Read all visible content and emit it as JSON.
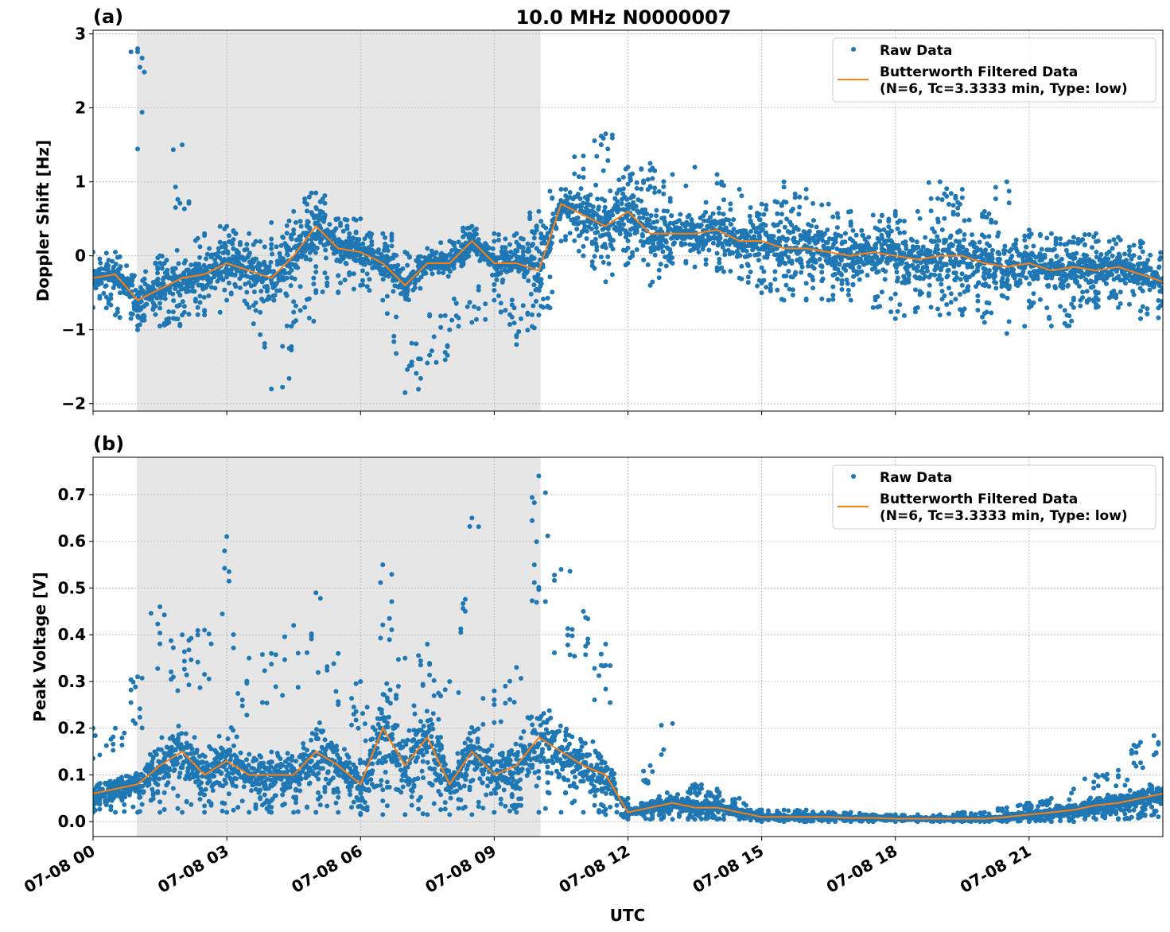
{
  "title": "10.0 MHz N0000007",
  "xlabel": "UTC",
  "colors": {
    "raw": "#1f77b4",
    "filtered": "#ff7f0e",
    "shade": "#e6e6e6",
    "grid": "#b0b0b0"
  },
  "legend": {
    "raw": "Raw Data",
    "filtered_line1": "Butterworth Filtered Data",
    "filtered_line2": "(N=6, Tc=3.3333 min, Type: low)",
    "placement": "top-right"
  },
  "x_tick_labels": [
    "07-08 00",
    "07-08 03",
    "07-08 06",
    "07-08 09",
    "07-08 12",
    "07-08 15",
    "07-08 18",
    "07-08 21"
  ],
  "chart_data": [
    {
      "type": "scatter+line",
      "panel_label": "(a)",
      "ylabel": "Doppler Shift [Hz]",
      "xlim_hours": [
        0,
        24
      ],
      "ylim": [
        -2.1,
        3.05
      ],
      "y_ticks": [
        3,
        2,
        1,
        0,
        -1,
        -2
      ],
      "y_tick_labels": [
        "3",
        "2",
        "1",
        "0",
        "−1",
        "−2"
      ],
      "grid": true,
      "shaded_interval_hours": [
        0.98,
        10.04
      ],
      "x_hours": [
        0,
        0.5,
        1,
        1.5,
        2,
        2.5,
        3,
        3.5,
        4,
        4.5,
        5,
        5.5,
        6,
        6.5,
        7,
        7.5,
        8,
        8.5,
        9,
        9.5,
        10,
        10.5,
        11,
        11.5,
        12,
        12.5,
        13,
        13.5,
        14,
        14.5,
        15,
        15.5,
        16,
        16.5,
        17,
        17.5,
        18,
        18.5,
        19,
        19.5,
        20,
        20.5,
        21,
        21.5,
        22,
        22.5,
        23,
        23.5,
        24
      ],
      "filtered": [
        -0.3,
        -0.25,
        -0.6,
        -0.45,
        -0.3,
        -0.25,
        -0.1,
        -0.2,
        -0.3,
        0.0,
        0.4,
        0.1,
        0.05,
        -0.1,
        -0.4,
        -0.1,
        -0.1,
        0.2,
        -0.1,
        -0.1,
        -0.2,
        0.7,
        0.55,
        0.4,
        0.6,
        0.3,
        0.3,
        0.3,
        0.35,
        0.2,
        0.2,
        0.1,
        0.1,
        0.05,
        0.0,
        0.05,
        0.0,
        -0.05,
        0.0,
        0.0,
        -0.1,
        -0.15,
        -0.1,
        -0.2,
        -0.15,
        -0.2,
        -0.15,
        -0.25,
        -0.35
      ],
      "raw_max": [
        0.05,
        0.05,
        2.8,
        0.0,
        1.5,
        0.3,
        0.4,
        0.3,
        0.45,
        0.6,
        0.85,
        0.5,
        0.5,
        0.3,
        0.05,
        0.1,
        0.2,
        0.4,
        0.3,
        0.3,
        0.6,
        0.9,
        1.35,
        1.65,
        1.2,
        1.25,
        1.1,
        1.2,
        1.1,
        0.9,
        0.7,
        1.0,
        0.9,
        0.7,
        0.6,
        0.55,
        0.6,
        0.6,
        1.0,
        0.9,
        0.6,
        1.0,
        0.35,
        0.3,
        0.25,
        0.3,
        0.25,
        0.2,
        0.05
      ],
      "raw_min": [
        -0.7,
        -0.8,
        -1.0,
        -0.95,
        -0.8,
        -0.8,
        -0.6,
        -0.7,
        -1.8,
        -0.9,
        -0.5,
        -0.5,
        -0.4,
        -0.6,
        -1.85,
        -1.45,
        -1.0,
        -0.9,
        -0.6,
        -1.2,
        -0.8,
        0.2,
        0.0,
        -0.35,
        -0.1,
        -0.4,
        -0.1,
        -0.15,
        -0.2,
        -0.3,
        -0.5,
        -0.6,
        -0.6,
        -0.6,
        -0.6,
        -0.7,
        -0.85,
        -0.7,
        -0.8,
        -0.8,
        -0.9,
        -1.05,
        -0.7,
        -0.95,
        -0.7,
        -0.7,
        -0.7,
        -0.85,
        -0.8
      ]
    },
    {
      "type": "scatter+line",
      "panel_label": "(b)",
      "ylabel": "Peak Voltage [V]",
      "xlim_hours": [
        0,
        24
      ],
      "ylim": [
        -0.032,
        0.78
      ],
      "y_ticks": [
        0,
        0.1,
        0.2,
        0.3,
        0.4,
        0.5,
        0.6,
        0.7
      ],
      "y_tick_labels": [
        "0.0",
        "0.1",
        "0.2",
        "0.3",
        "0.4",
        "0.5",
        "0.6",
        "0.7"
      ],
      "grid": true,
      "shaded_interval_hours": [
        0.98,
        10.04
      ],
      "x_hours": [
        0,
        0.5,
        1,
        1.5,
        2,
        2.5,
        3,
        3.5,
        4,
        4.5,
        5,
        5.5,
        6,
        6.5,
        7,
        7.5,
        8,
        8.5,
        9,
        9.5,
        10,
        10.5,
        11,
        11.5,
        12,
        12.5,
        13,
        13.5,
        14,
        14.5,
        15,
        15.5,
        16,
        16.5,
        17,
        17.5,
        18,
        18.5,
        19,
        19.5,
        20,
        20.5,
        21,
        21.5,
        22,
        22.5,
        23,
        23.5,
        24
      ],
      "filtered": [
        0.06,
        0.07,
        0.08,
        0.12,
        0.15,
        0.1,
        0.13,
        0.1,
        0.1,
        0.1,
        0.15,
        0.12,
        0.08,
        0.2,
        0.12,
        0.18,
        0.08,
        0.15,
        0.1,
        0.12,
        0.18,
        0.15,
        0.12,
        0.1,
        0.02,
        0.03,
        0.04,
        0.03,
        0.03,
        0.02,
        0.01,
        0.01,
        0.01,
        0.01,
        0.008,
        0.008,
        0.006,
        0.006,
        0.006,
        0.006,
        0.006,
        0.01,
        0.015,
        0.02,
        0.025,
        0.035,
        0.04,
        0.05,
        0.06
      ],
      "raw_max": [
        0.2,
        0.2,
        0.31,
        0.46,
        0.4,
        0.41,
        0.61,
        0.35,
        0.36,
        0.42,
        0.49,
        0.36,
        0.3,
        0.55,
        0.35,
        0.38,
        0.3,
        0.65,
        0.28,
        0.33,
        0.74,
        0.54,
        0.45,
        0.38,
        0.05,
        0.12,
        0.21,
        0.08,
        0.07,
        0.05,
        0.025,
        0.025,
        0.025,
        0.02,
        0.02,
        0.015,
        0.015,
        0.015,
        0.015,
        0.02,
        0.02,
        0.03,
        0.04,
        0.05,
        0.07,
        0.1,
        0.11,
        0.17,
        0.21
      ],
      "raw_min": [
        0.02,
        0.02,
        0.02,
        0.02,
        0.02,
        0.02,
        0.02,
        0.02,
        0.02,
        0.02,
        0.02,
        0.02,
        0.015,
        0.015,
        0.015,
        0.015,
        0.015,
        0.015,
        0.02,
        0.02,
        0.02,
        0.02,
        0.02,
        0.015,
        0.005,
        0.005,
        0.005,
        0.005,
        0.005,
        0.005,
        0.0,
        0.0,
        0.0,
        0.0,
        0.0,
        0.0,
        0.0,
        0.0,
        0.0,
        0.0,
        0.0,
        0.0,
        0.0,
        0.0,
        0.0,
        0.005,
        0.005,
        0.01,
        0.01
      ]
    }
  ]
}
